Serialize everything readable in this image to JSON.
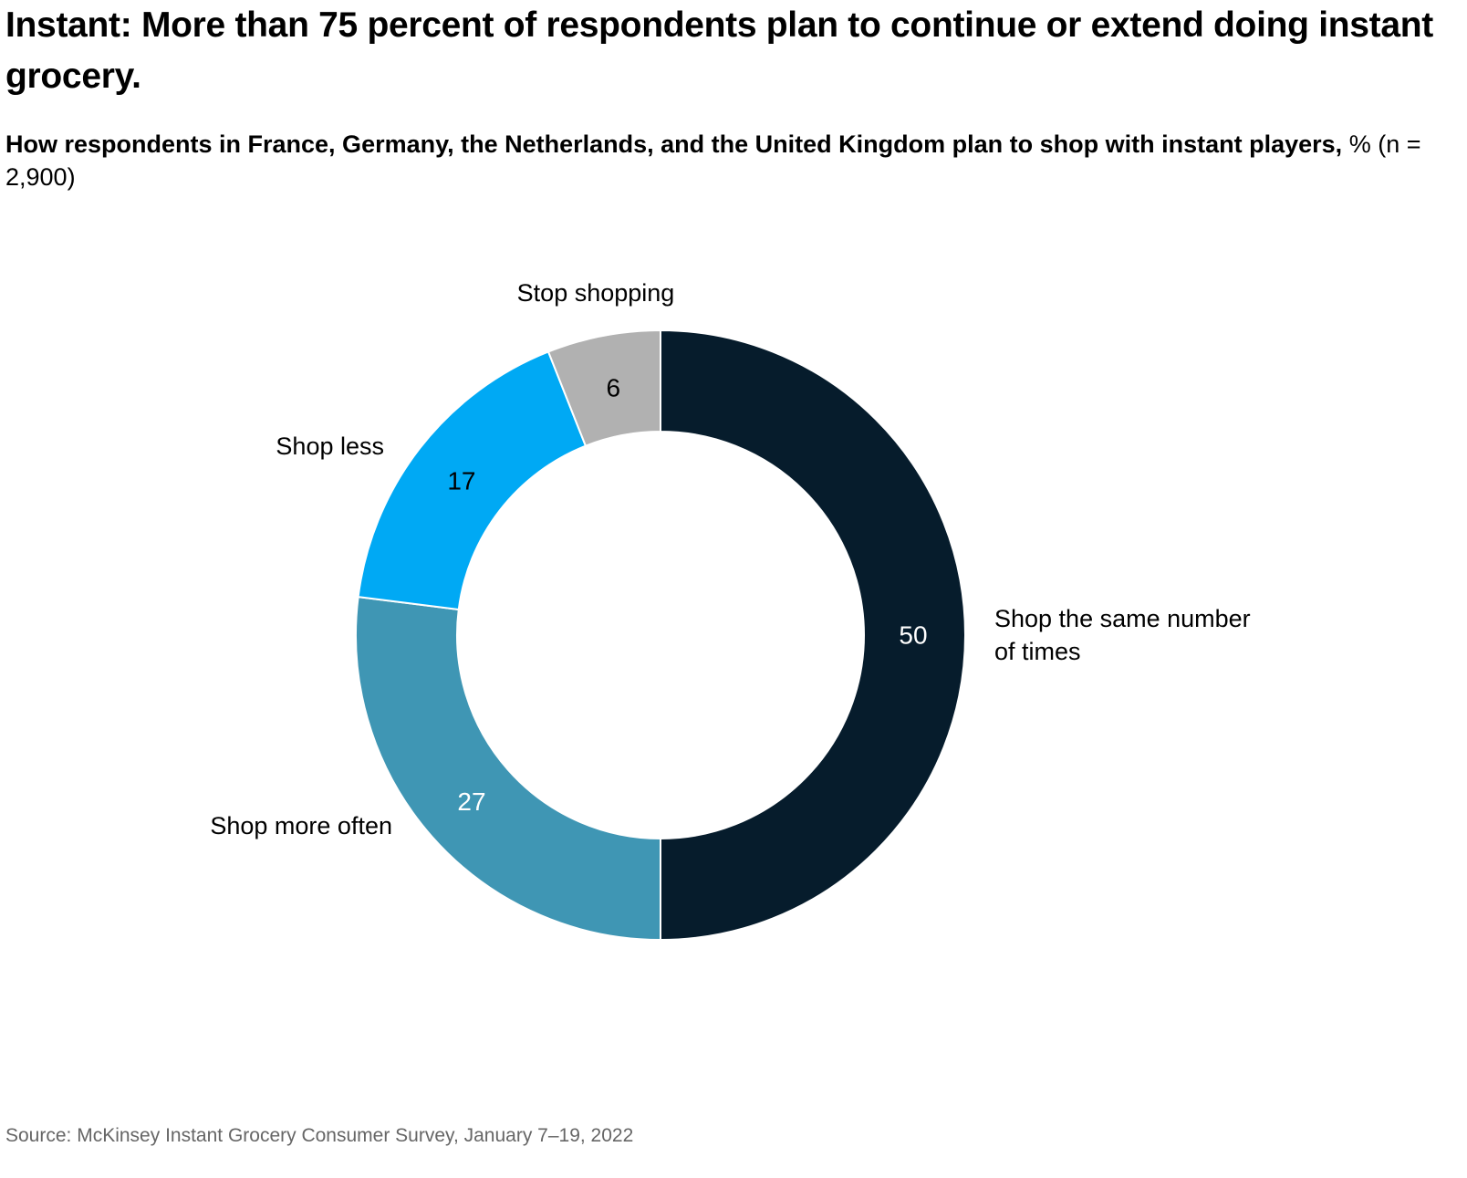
{
  "title": "Instant: More than 75 percent of respondents plan to continue or extend doing instant grocery.",
  "subtitle": {
    "bold": "How respondents in France, Germany, the Netherlands, and the United Kingdom plan to shop with instant players,",
    "rest": " % (n = 2,900)"
  },
  "source": "Source: McKinsey Instant Grocery Consumer Survey, January 7–19, 2022",
  "chart_data": {
    "type": "pie",
    "variant": "donut",
    "unit": "%",
    "slices": [
      {
        "label": "Shop the same number of times",
        "label_lines": [
          "Shop the same number",
          "of times"
        ],
        "value": 50,
        "color": "#061c2c",
        "value_color": "#ffffff"
      },
      {
        "label": "Shop more often",
        "label_lines": [
          "Shop more often"
        ],
        "value": 27,
        "color": "#3f96b4",
        "value_color": "#ffffff"
      },
      {
        "label": "Shop less",
        "label_lines": [
          "Shop less"
        ],
        "value": 17,
        "color": "#00a9f4",
        "value_color": "#000000"
      },
      {
        "label": "Stop shopping",
        "label_lines": [
          "Stop shopping"
        ],
        "value": 6,
        "color": "#b1b1b1",
        "value_color": "#000000"
      }
    ],
    "start": "12 o'clock",
    "direction": "clockwise"
  }
}
